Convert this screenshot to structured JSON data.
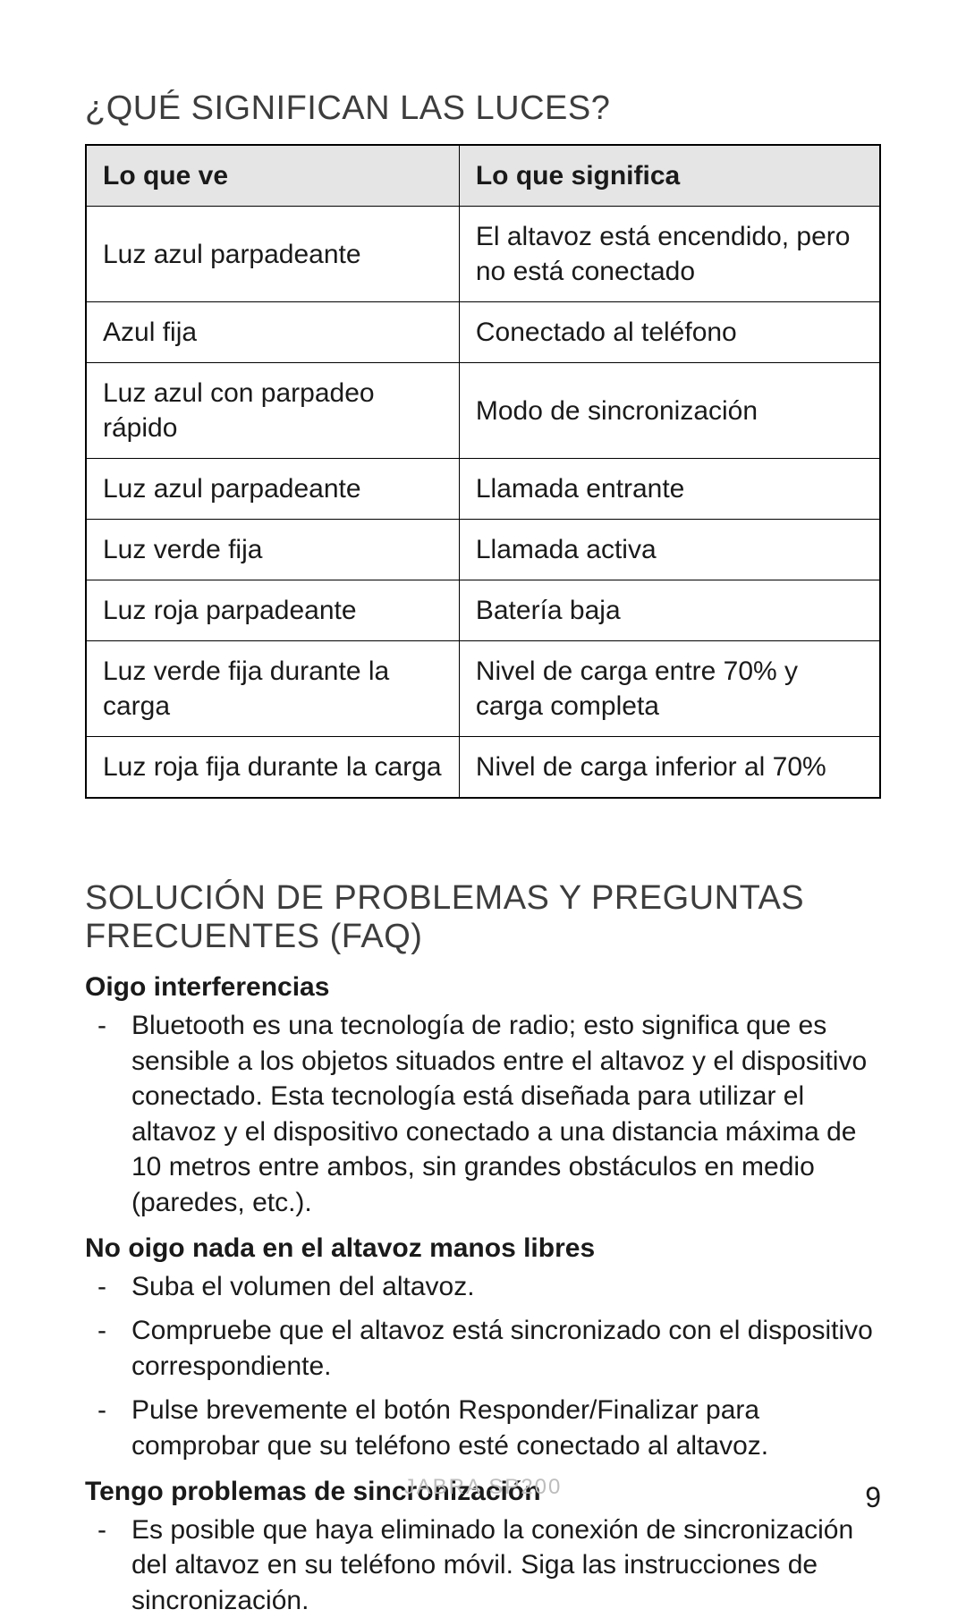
{
  "sections": {
    "lights": {
      "heading": "¿QUÉ SIGNIFICAN LAS LUCES?",
      "table": {
        "columns": [
          "Lo que ve",
          "Lo que significa"
        ],
        "rows": [
          [
            "Luz azul parpadeante",
            "El altavoz está encendido, pero no está conectado"
          ],
          [
            "Azul fija",
            "Conectado al teléfono"
          ],
          [
            "Luz azul con parpadeo rápido",
            "Modo de sincronización"
          ],
          [
            "Luz azul parpadeante",
            "Llamada entrante"
          ],
          [
            "Luz verde fija",
            "Llamada activa"
          ],
          [
            "Luz roja parpadeante",
            "Batería baja"
          ],
          [
            "Luz verde fija durante la carga",
            "Nivel de carga entre 70% y carga completa"
          ],
          [
            "Luz roja fija durante la carga",
            "Nivel de carga inferior al 70%"
          ]
        ],
        "header_bg": "#e5e5e5",
        "border_color": "#000000",
        "font_size_pt": 22
      }
    },
    "faq": {
      "heading": "SOLUCIÓN DE PROBLEMAS Y PREGUNTAS FRECUENTES (FAQ)",
      "items": [
        {
          "q": "Oigo interferencias",
          "a": [
            "Bluetooth es una tecnología de radio; esto significa que es sensible a los objetos situados entre el altavoz y el dispositivo conectado. Esta tecnología está diseñada para utilizar el altavoz y el dispositivo conectado a una distancia máxima de 10 metros entre ambos, sin grandes obstáculos en medio (paredes, etc.)."
          ]
        },
        {
          "q": "No oigo nada en el altavoz manos libres",
          "a": [
            "Suba el volumen del altavoz.",
            "Compruebe que el altavoz está sincronizado con el dispositivo correspondiente.",
            "Pulse brevemente el botón Responder/Finalizar para comprobar que su teléfono esté conectado al altavoz."
          ]
        },
        {
          "q": "Tengo problemas de sincronización",
          "a": [
            "Es posible que haya eliminado la conexión de sincronización del altavoz en su teléfono móvil. Siga las instrucciones de sincronización."
          ]
        }
      ]
    }
  },
  "footer": {
    "product": "JABRA SP200",
    "page_number": "9",
    "product_color": "#bdbdbd"
  },
  "style": {
    "page_bg": "#ffffff",
    "text_color": "#1a1a1a",
    "heading_color": "#3d3d3d",
    "heading_fontsize_pt": 28,
    "body_fontsize_pt": 22
  }
}
